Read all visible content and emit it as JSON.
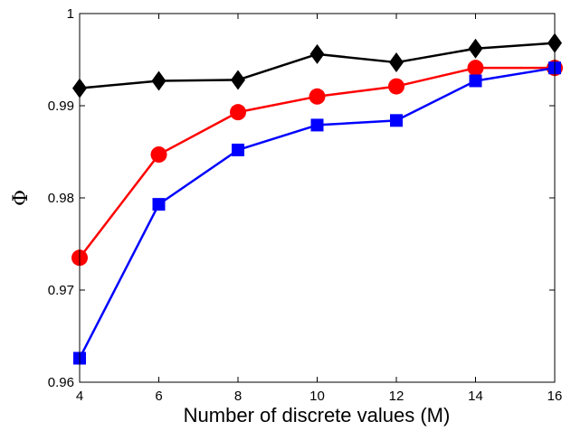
{
  "chart_data": {
    "type": "line",
    "title": "",
    "xlabel": "Number of discrete values (M)",
    "ylabel": "Φ",
    "xlim": [
      4,
      16
    ],
    "ylim": [
      0.96,
      1
    ],
    "x_ticks": [
      4,
      6,
      8,
      10,
      12,
      14,
      16
    ],
    "y_ticks": [
      0.96,
      0.97,
      0.98,
      0.99,
      1
    ],
    "y_tick_labels": [
      "0.96",
      "0.97",
      "0.98",
      "0.99",
      "1"
    ],
    "grid": false,
    "legend": "none",
    "x": [
      4,
      6,
      8,
      10,
      12,
      14,
      16
    ],
    "series": [
      {
        "color": "#000000",
        "marker": "diamond",
        "values": [
          0.9919,
          0.9927,
          0.9928,
          0.9956,
          0.9947,
          0.9962,
          0.9968
        ]
      },
      {
        "color": "#ff0000",
        "marker": "circle",
        "values": [
          0.9735,
          0.9847,
          0.9893,
          0.991,
          0.9921,
          0.9941,
          0.9941
        ]
      },
      {
        "color": "#0000ff",
        "marker": "square",
        "values": [
          0.9626,
          0.9793,
          0.9852,
          0.9879,
          0.9884,
          0.9927,
          0.9941
        ]
      }
    ]
  }
}
